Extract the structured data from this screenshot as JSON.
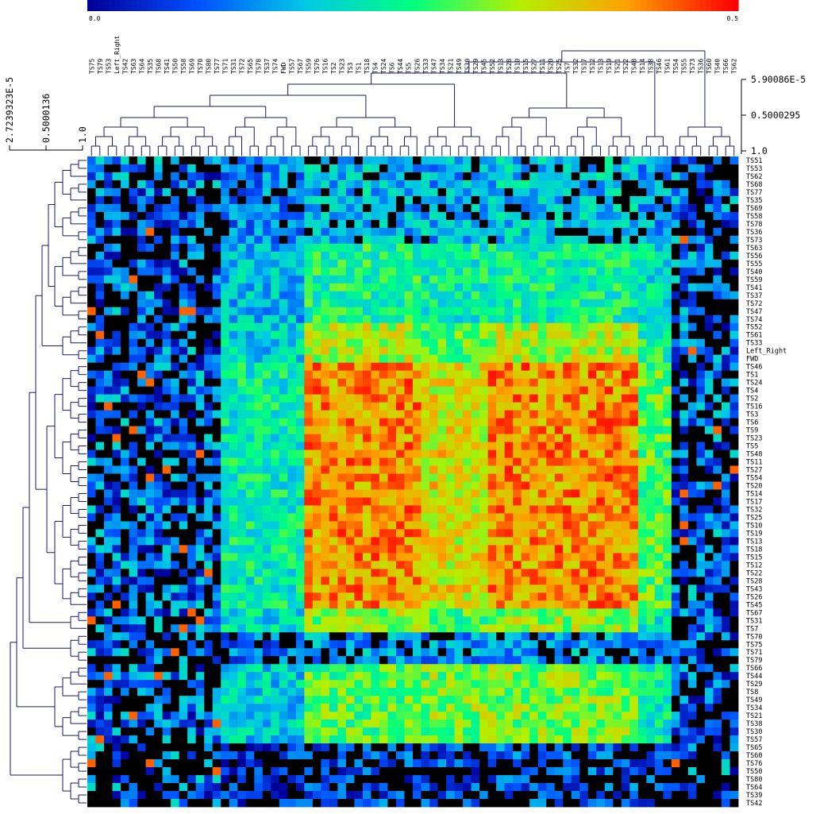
{
  "chart_data": {
    "type": "heatmap",
    "title": "",
    "color_scale": {
      "min_label": "0.0",
      "max_label": "0.5",
      "min": 0.0,
      "max": 0.5,
      "colors": [
        "#000099",
        "#0050ff",
        "#00c8e6",
        "#00ff80",
        "#b4f000",
        "#ffa000",
        "#ff0000"
      ],
      "missing_color": "#000000"
    },
    "column_labels": [
      "TS75",
      "TS79",
      "TS53",
      "Left_Right",
      "TS42",
      "TS63",
      "TS64",
      "TS35",
      "TS68",
      "TS41",
      "TS50",
      "TS58",
      "TS69",
      "TS70",
      "TS80",
      "TS77",
      "TS71",
      "TS31",
      "TS72",
      "TS65",
      "TS78",
      "TS37",
      "TS74",
      "FWD",
      "TS57",
      "TS67",
      "TS59",
      "TS76",
      "TS16",
      "TS2",
      "TS23",
      "TS3",
      "TS1",
      "TS18",
      "TS4",
      "TS24",
      "TS6",
      "TS44",
      "TS5",
      "TS26",
      "TS33",
      "TS47",
      "TS34",
      "TS21",
      "TS49",
      "TS30",
      "TS29",
      "TS45",
      "TS52",
      "TS13",
      "TS28",
      "TS10",
      "TS15",
      "TS27",
      "TS11",
      "TS20",
      "TS25",
      "TS7",
      "TS32",
      "TS17",
      "TS12",
      "TS13",
      "TS19",
      "TS21",
      "TS22",
      "TS48",
      "TS14",
      "TS38",
      "TS46",
      "TS61",
      "TS54",
      "TS55",
      "TS73",
      "TS36",
      "TS60",
      "TS40",
      "TS66",
      "TS62"
    ],
    "row_labels": [
      "TS51",
      "TS53",
      "TS62",
      "TS68",
      "TS77",
      "TS35",
      "TS69",
      "TS58",
      "TS78",
      "TS36",
      "TS73",
      "TS63",
      "TS56",
      "TS55",
      "TS40",
      "TS59",
      "TS41",
      "TS37",
      "TS72",
      "TS47",
      "TS74",
      "TS52",
      "TS61",
      "TS33",
      "Left_Right",
      "FWD",
      "TS46",
      "TS1",
      "TS24",
      "TS4",
      "TS2",
      "TS16",
      "TS3",
      "TS6",
      "TS9",
      "TS23",
      "TS5",
      "TS48",
      "TS11",
      "TS27",
      "TS54",
      "TS20",
      "TS14",
      "TS17",
      "TS32",
      "TS25",
      "TS10",
      "TS19",
      "TS13",
      "TS18",
      "TS15",
      "TS12",
      "TS22",
      "TS28",
      "TS43",
      "TS26",
      "TS45",
      "TS67",
      "TS31",
      "TS7",
      "TS70",
      "TS75",
      "TS71",
      "TS79",
      "TS66",
      "TS44",
      "TS29",
      "TS8",
      "TS49",
      "TS34",
      "TS21",
      "TS38",
      "TS30",
      "TS57",
      "TS65",
      "TS60",
      "TS76",
      "TS50",
      "TS80",
      "TS64",
      "TS39",
      "TS42"
    ],
    "column_dendrogram_scale": [
      "5.90086E-5",
      "0.5000295",
      "1.0"
    ],
    "row_dendrogram_scale": [
      "2.7239323E-5",
      "0.5000136",
      "1.0"
    ],
    "grid": false,
    "legend": "top"
  }
}
